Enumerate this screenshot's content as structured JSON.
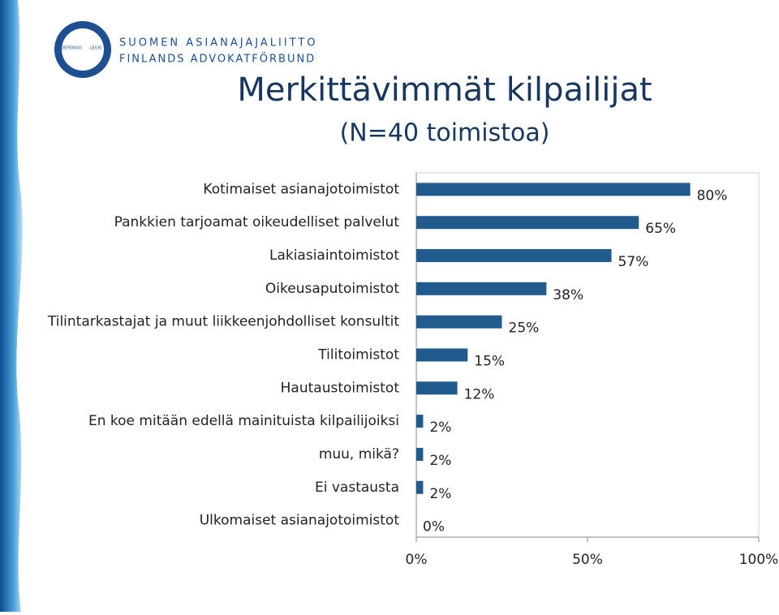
{
  "logo": {
    "motto_left": "DEFENSIO",
    "motto_right": "LEGIS",
    "name_fi": "SUOMEN ASIANAJAJALIITTO",
    "name_sv": "FINLANDS ADVOKATFÖRBUND"
  },
  "chart_data": {
    "type": "hbar",
    "title": "Merkittävimmät kilpailijat",
    "subtitle": "(N=40 toimistoa)",
    "categories": [
      "Kotimaiset asianajotoimistot",
      "Pankkien tarjoamat oikeudelliset palvelut",
      "Lakiasiaintoimistot",
      "Oikeusaputoimistot",
      "Tilintarkastajat ja muut liikkeenjohdolliset konsultit",
      "Tilitoimistot",
      "Hautaustoimistot",
      "En koe mitään edellä mainituista kilpailijoiksi",
      "muu, mikä?",
      "Ei vastausta",
      "Ulkomaiset asianajotoimistot"
    ],
    "values": [
      80,
      65,
      57,
      38,
      25,
      15,
      12,
      2,
      2,
      2,
      0
    ],
    "value_labels": [
      "80%",
      "65%",
      "57%",
      "38%",
      "25%",
      "15%",
      "12%",
      "2%",
      "2%",
      "2%",
      "0%"
    ],
    "color": "#215a8c",
    "xlim": [
      0,
      100
    ],
    "xticks": [
      {
        "value": 0,
        "label": "0%"
      },
      {
        "value": 50,
        "label": "50%"
      },
      {
        "value": 100,
        "label": "100%"
      }
    ]
  }
}
